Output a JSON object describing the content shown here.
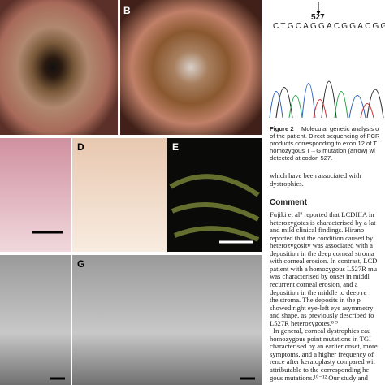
{
  "figure": {
    "panel_labels": [
      "B",
      "D",
      "E",
      "G"
    ],
    "codon_label": "527",
    "sequence": "CTGCAGGACGGACGGA",
    "caption": {
      "label": "Figure 2",
      "lines": [
        "Molecular genetic analysis o",
        "of the patient. Direct sequencing of PCR",
        "products corresponding to exon 12 of T",
        "homozygous T→G mutation (arrow) wi",
        "detected at codon 527."
      ]
    }
  },
  "body": {
    "intro_lines": [
      "which have been associated with",
      "dystrophies."
    ],
    "heading": "Comment",
    "paragraph_lines": [
      "Fujiki et al⁸ reported that LCDIIIA in",
      "heterozygotes is characterised by a lat",
      "and mild clinical findings. Hirano",
      "reported that the condition caused by",
      "heterozygosity was associated with a",
      "deposition in the deep corneal stroma",
      "with corneal erosion. In contrast, LCD",
      "patient with a homozygous L527R mu",
      "was characterised by onset in middl",
      "recurrent corneal erosion, and a",
      "deposition in the middle to deep re",
      "the stroma. The deposits in the p",
      "showed right eye-left eye asymmetry",
      "and shape, as previously described fo",
      "L527R heterozygotes.⁸ ⁹",
      "  In general, corneal dystrophies cau",
      "homozygous point mutations in TGI",
      "characterised by an earlier onset, more",
      "symptoms, and a higher frequency of",
      "rence after keratoplasty compared wit",
      "attributable to the corresponding he",
      "gous mutations.¹⁰⁻¹² Our study and"
    ]
  }
}
